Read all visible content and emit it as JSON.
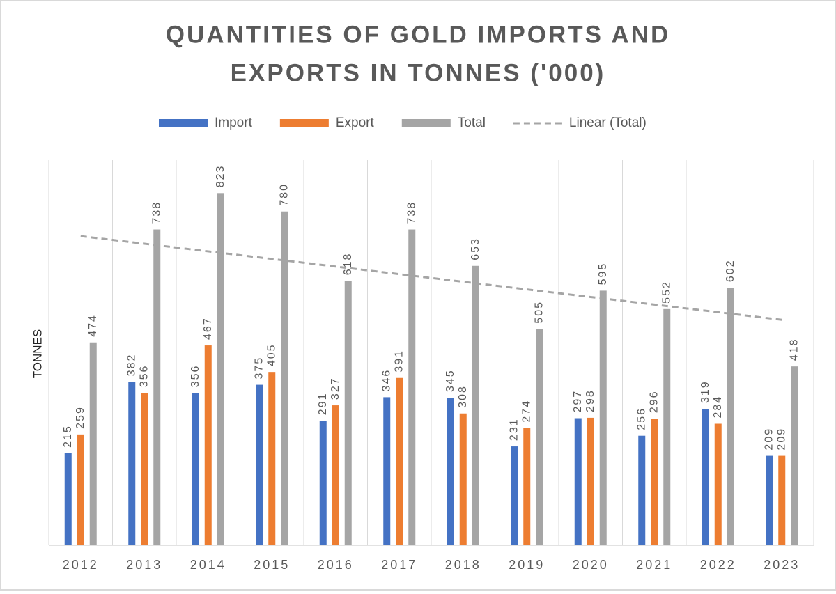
{
  "chart_data": {
    "type": "bar",
    "title": [
      "QUANTITIES OF GOLD IMPORTS AND",
      "EXPORTS IN TONNES ('000)"
    ],
    "y_label": "TONNES",
    "categories": [
      "2012",
      "2013",
      "2014",
      "2015",
      "2016",
      "2017",
      "2018",
      "2019",
      "2020",
      "2021",
      "2022",
      "2023"
    ],
    "series": [
      {
        "name": "Import",
        "color": "#4472c4",
        "values": [
          215,
          382,
          356,
          375,
          291,
          346,
          345,
          231,
          297,
          256,
          319,
          209
        ]
      },
      {
        "name": "Export",
        "color": "#ed7d31",
        "values": [
          259,
          356,
          467,
          405,
          327,
          391,
          308,
          274,
          298,
          296,
          284,
          209
        ]
      },
      {
        "name": "Total",
        "color": "#a5a5a5",
        "values": [
          474,
          738,
          823,
          780,
          618,
          738,
          653,
          505,
          595,
          552,
          602,
          418
        ]
      }
    ],
    "trendline": {
      "name": "Linear (Total)",
      "color": "#a5a5a5",
      "values": [
        722.5,
        704.7,
        686.9,
        669.2,
        651.4,
        633.6,
        615.8,
        598.0,
        580.2,
        562.5,
        544.7,
        526.9
      ]
    },
    "ylim": [
      0,
      900
    ]
  }
}
